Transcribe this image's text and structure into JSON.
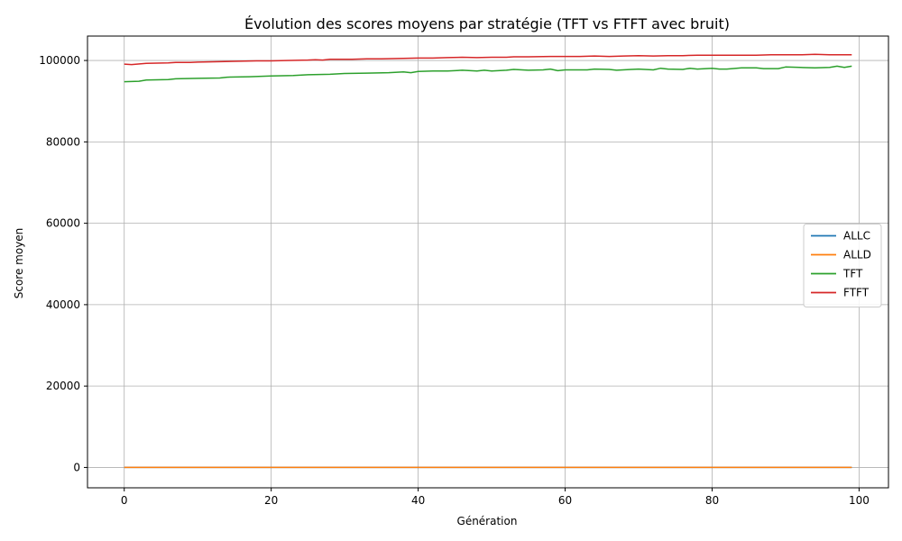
{
  "chart_data": {
    "type": "line",
    "title": "Évolution des scores moyens par stratégie (TFT vs FTFT avec bruit)",
    "xlabel": "Génération",
    "ylabel": "Score moyen",
    "xlim": [
      -5,
      104
    ],
    "ylim": [
      -5000,
      106000
    ],
    "xticks": [
      0,
      20,
      40,
      60,
      80,
      100
    ],
    "yticks": [
      0,
      20000,
      40000,
      60000,
      80000,
      100000
    ],
    "grid": true,
    "legend_position": "center-right",
    "x_start": 0,
    "x_end": 99,
    "series": [
      {
        "name": "ALLC",
        "color": "#1f77b4",
        "values": [
          [
            0,
            0
          ],
          [
            99,
            0
          ]
        ]
      },
      {
        "name": "ALLD",
        "color": "#ff7f0e",
        "values": [
          [
            0,
            0
          ],
          [
            99,
            0
          ]
        ]
      },
      {
        "name": "TFT",
        "color": "#2ca02c",
        "values": [
          [
            0,
            94800
          ],
          [
            2,
            94900
          ],
          [
            3,
            95200
          ],
          [
            6,
            95300
          ],
          [
            7,
            95500
          ],
          [
            10,
            95600
          ],
          [
            13,
            95700
          ],
          [
            14,
            95900
          ],
          [
            17,
            96000
          ],
          [
            20,
            96200
          ],
          [
            23,
            96300
          ],
          [
            25,
            96500
          ],
          [
            28,
            96600
          ],
          [
            30,
            96800
          ],
          [
            33,
            96900
          ],
          [
            36,
            97000
          ],
          [
            38,
            97200
          ],
          [
            39,
            97000
          ],
          [
            40,
            97300
          ],
          [
            42,
            97400
          ],
          [
            44,
            97400
          ],
          [
            46,
            97600
          ],
          [
            48,
            97400
          ],
          [
            49,
            97600
          ],
          [
            50,
            97400
          ],
          [
            52,
            97600
          ],
          [
            53,
            97800
          ],
          [
            55,
            97600
          ],
          [
            57,
            97700
          ],
          [
            58,
            97900
          ],
          [
            59,
            97500
          ],
          [
            60,
            97700
          ],
          [
            63,
            97700
          ],
          [
            64,
            97900
          ],
          [
            66,
            97800
          ],
          [
            67,
            97600
          ],
          [
            69,
            97800
          ],
          [
            70,
            97900
          ],
          [
            72,
            97700
          ],
          [
            73,
            98100
          ],
          [
            74,
            97900
          ],
          [
            76,
            97800
          ],
          [
            77,
            98100
          ],
          [
            78,
            97900
          ],
          [
            80,
            98100
          ],
          [
            81,
            97900
          ],
          [
            82,
            97900
          ],
          [
            84,
            98200
          ],
          [
            86,
            98200
          ],
          [
            87,
            98000
          ],
          [
            89,
            98000
          ],
          [
            90,
            98400
          ],
          [
            92,
            98300
          ],
          [
            94,
            98200
          ],
          [
            96,
            98300
          ],
          [
            97,
            98600
          ],
          [
            98,
            98300
          ],
          [
            99,
            98600
          ]
        ]
      },
      {
        "name": "FTFT",
        "color": "#d62728",
        "values": [
          [
            0,
            99100
          ],
          [
            1,
            99000
          ],
          [
            3,
            99300
          ],
          [
            6,
            99400
          ],
          [
            7,
            99500
          ],
          [
            9,
            99500
          ],
          [
            10,
            99600
          ],
          [
            13,
            99700
          ],
          [
            15,
            99800
          ],
          [
            18,
            99900
          ],
          [
            20,
            99900
          ],
          [
            22,
            100000
          ],
          [
            25,
            100100
          ],
          [
            26,
            100200
          ],
          [
            27,
            100100
          ],
          [
            28,
            100300
          ],
          [
            31,
            100300
          ],
          [
            33,
            100400
          ],
          [
            35,
            100400
          ],
          [
            38,
            100500
          ],
          [
            40,
            100600
          ],
          [
            42,
            100600
          ],
          [
            44,
            100700
          ],
          [
            46,
            100800
          ],
          [
            48,
            100700
          ],
          [
            50,
            100800
          ],
          [
            52,
            100800
          ],
          [
            53,
            100900
          ],
          [
            55,
            100900
          ],
          [
            58,
            101000
          ],
          [
            60,
            101000
          ],
          [
            62,
            101000
          ],
          [
            64,
            101100
          ],
          [
            66,
            101000
          ],
          [
            68,
            101100
          ],
          [
            70,
            101200
          ],
          [
            72,
            101100
          ],
          [
            74,
            101200
          ],
          [
            76,
            101200
          ],
          [
            78,
            101300
          ],
          [
            80,
            101300
          ],
          [
            82,
            101300
          ],
          [
            84,
            101300
          ],
          [
            86,
            101300
          ],
          [
            88,
            101400
          ],
          [
            90,
            101400
          ],
          [
            92,
            101400
          ],
          [
            94,
            101500
          ],
          [
            96,
            101400
          ],
          [
            99,
            101400
          ]
        ]
      }
    ]
  }
}
